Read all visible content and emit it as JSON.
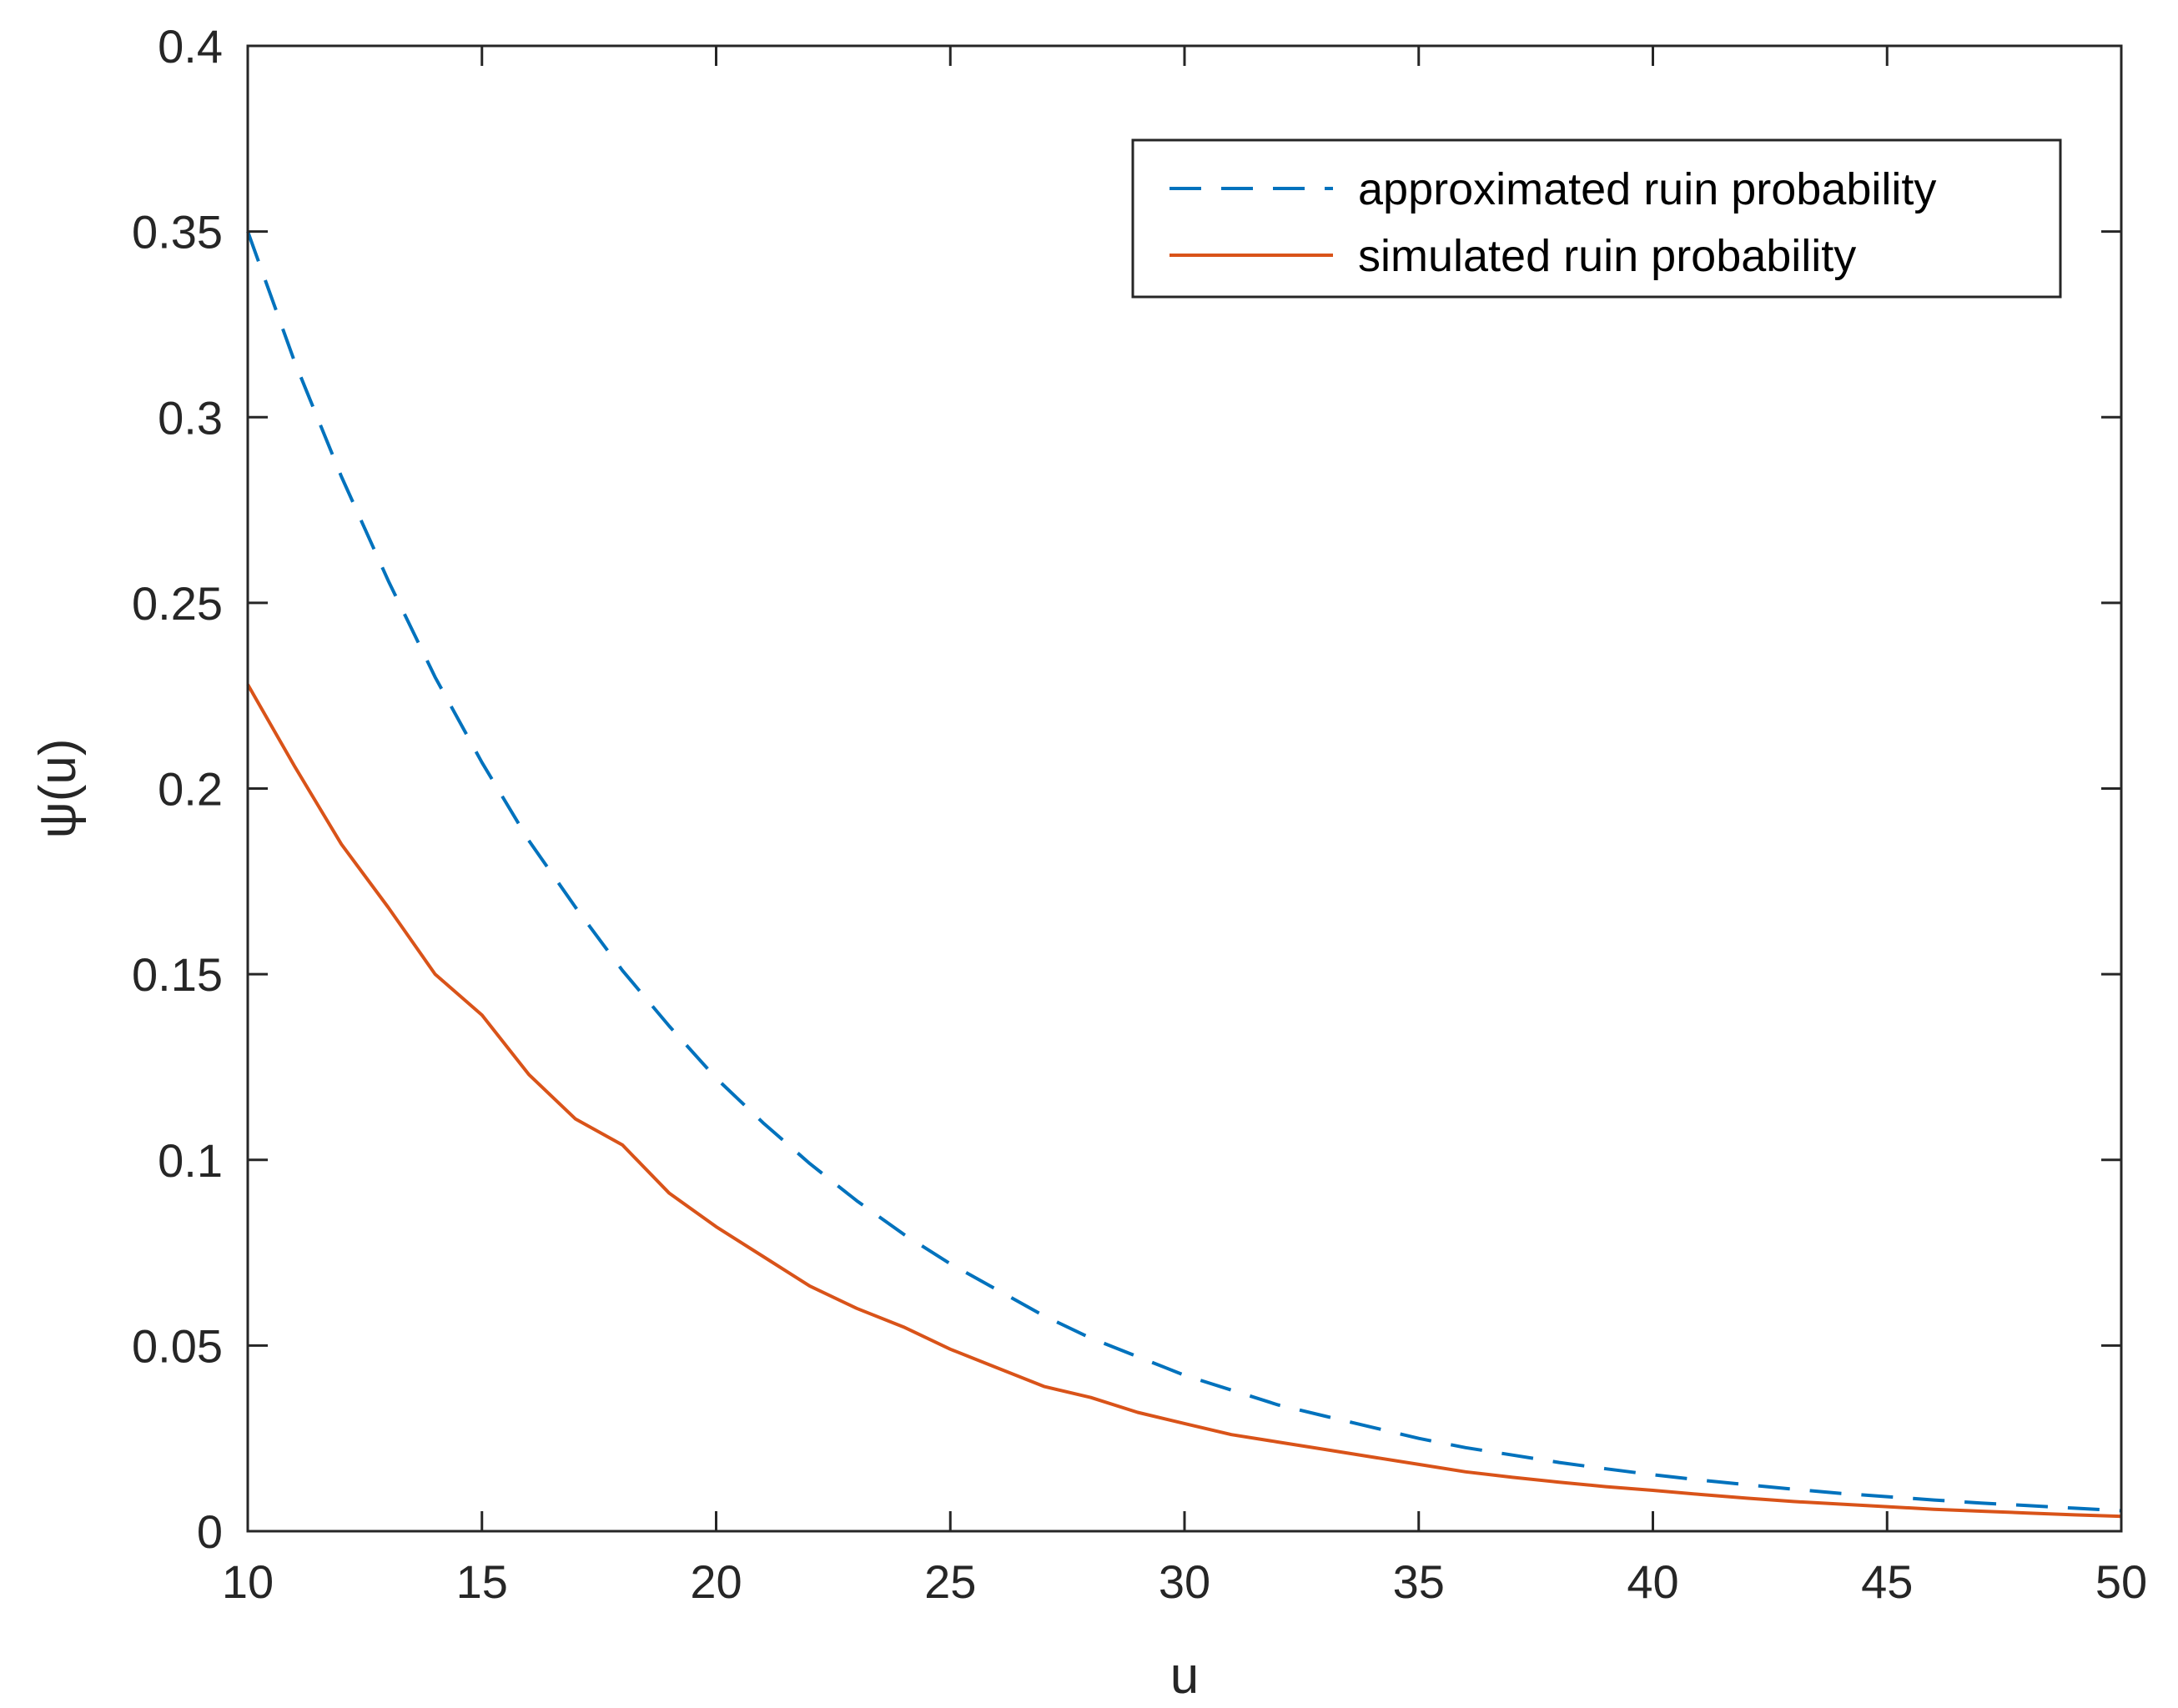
{
  "chart_data": {
    "type": "line",
    "title": "",
    "xlabel": "u",
    "ylabel": "ψ(u)",
    "xlim": [
      10,
      50
    ],
    "ylim": [
      0,
      0.4
    ],
    "xticks": [
      10,
      15,
      20,
      25,
      30,
      35,
      40,
      45,
      50
    ],
    "yticks": [
      0,
      0.05,
      0.1,
      0.15,
      0.2,
      0.25,
      0.3,
      0.35,
      0.4
    ],
    "xtick_labels": [
      "10",
      "15",
      "20",
      "25",
      "30",
      "35",
      "40",
      "45",
      "50"
    ],
    "ytick_labels": [
      "0",
      "0.05",
      "0.1",
      "0.15",
      "0.2",
      "0.25",
      "0.3",
      "0.35",
      "0.4"
    ],
    "grid": false,
    "box": true,
    "legend": {
      "position": "top-right"
    },
    "series": [
      {
        "name": "approximated ruin probability",
        "style": "dashed",
        "color": "#0072BD",
        "x": [
          10,
          11,
          12,
          13,
          14,
          15,
          16,
          17,
          18,
          19,
          20,
          21,
          22,
          23,
          24,
          25,
          26,
          27,
          28,
          29,
          30,
          31,
          32,
          33,
          34,
          35,
          36,
          37,
          38,
          39,
          40,
          41,
          42,
          43,
          44,
          45,
          46,
          47,
          48,
          49,
          50
        ],
        "values": [
          0.35,
          0.315,
          0.284,
          0.256,
          0.23,
          0.207,
          0.186,
          0.168,
          0.151,
          0.136,
          0.122,
          0.11,
          0.099,
          0.089,
          0.08,
          0.072,
          0.065,
          0.058,
          0.052,
          0.047,
          0.042,
          0.038,
          0.034,
          0.031,
          0.028,
          0.025,
          0.0225,
          0.0205,
          0.0185,
          0.0168,
          0.0152,
          0.0138,
          0.0125,
          0.0113,
          0.0102,
          0.0093,
          0.0084,
          0.0076,
          0.0069,
          0.0062,
          0.0055
        ]
      },
      {
        "name": "simulated ruin probability",
        "style": "solid",
        "color": "#D95319",
        "x": [
          10,
          11,
          12,
          13,
          14,
          15,
          16,
          17,
          18,
          19,
          20,
          21,
          22,
          23,
          24,
          25,
          26,
          27,
          28,
          29,
          30,
          31,
          32,
          33,
          34,
          35,
          36,
          37,
          38,
          39,
          40,
          41,
          42,
          43,
          44,
          45,
          46,
          47,
          48,
          49,
          50
        ],
        "values": [
          0.228,
          0.206,
          0.185,
          0.168,
          0.15,
          0.139,
          0.123,
          0.111,
          0.104,
          0.091,
          0.082,
          0.074,
          0.066,
          0.06,
          0.055,
          0.049,
          0.044,
          0.039,
          0.036,
          0.032,
          0.029,
          0.026,
          0.024,
          0.022,
          0.02,
          0.018,
          0.016,
          0.0145,
          0.0132,
          0.012,
          0.011,
          0.0099,
          0.0089,
          0.008,
          0.0073,
          0.0066,
          0.0059,
          0.0054,
          0.0049,
          0.0044,
          0.004
        ]
      }
    ]
  }
}
